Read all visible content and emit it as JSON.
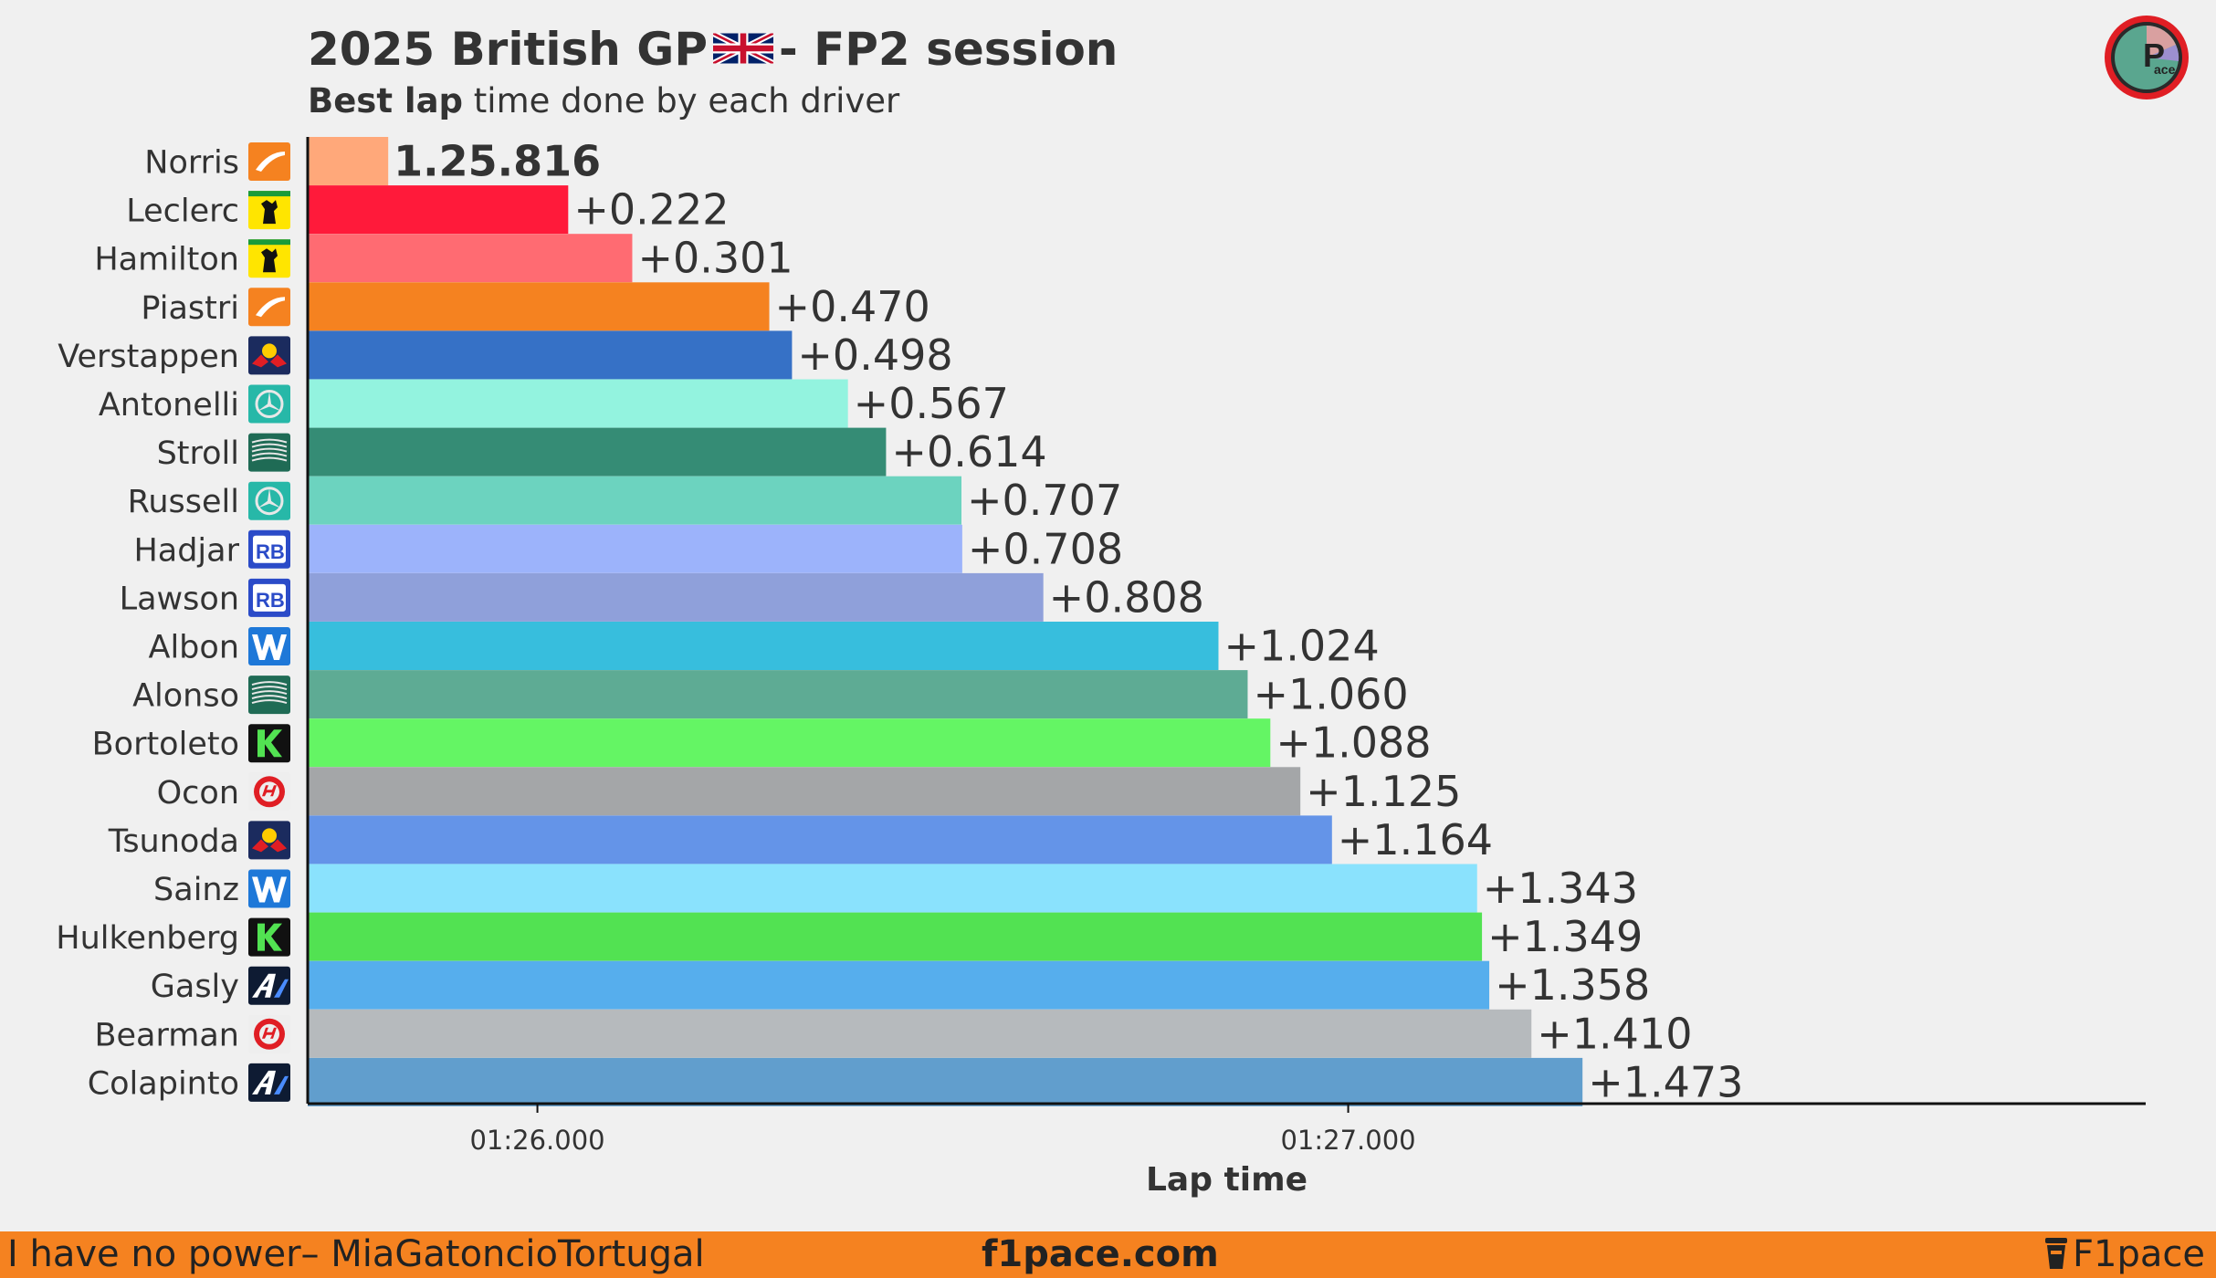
{
  "header": {
    "title_left": "2025 British GP",
    "title_right": "- FP2 session",
    "flag_icon": "uk-flag-icon",
    "subtitle_bold": "Best lap",
    "subtitle_rest": " time done by each driver"
  },
  "footer": {
    "left": "I have no power– MiaGatoncioTortugal",
    "center": "f1pace.com",
    "right": "F1pace"
  },
  "chart_data": {
    "type": "bar",
    "orientation": "horizontal",
    "xlabel": "Lap time",
    "xlim": [
      85.7167,
      87.9836
    ],
    "xticks": [
      {
        "value": 86.0,
        "label": "01:26.000"
      },
      {
        "value": 87.0,
        "label": "01:27.000"
      }
    ],
    "grid": false,
    "bars": [
      {
        "driver": "Norris",
        "team": "mclaren",
        "lap_time": 85.816,
        "label": "1.25.816",
        "color": "#ffa87a"
      },
      {
        "driver": "Leclerc",
        "team": "ferrari",
        "lap_time": 86.038,
        "label": "+0.222",
        "color": "#ff1a3a"
      },
      {
        "driver": "Hamilton",
        "team": "ferrari",
        "lap_time": 86.117,
        "label": "+0.301",
        "color": "#ff6b72"
      },
      {
        "driver": "Piastri",
        "team": "mclaren",
        "lap_time": 86.286,
        "label": "+0.470",
        "color": "#f58220"
      },
      {
        "driver": "Verstappen",
        "team": "redbull",
        "lap_time": 86.314,
        "label": "+0.498",
        "color": "#3671c6"
      },
      {
        "driver": "Antonelli",
        "team": "mercedes",
        "lap_time": 86.383,
        "label": "+0.567",
        "color": "#93f3df"
      },
      {
        "driver": "Stroll",
        "team": "astonmartin",
        "lap_time": 86.43,
        "label": "+0.614",
        "color": "#358c75"
      },
      {
        "driver": "Russell",
        "team": "mercedes",
        "lap_time": 86.523,
        "label": "+0.707",
        "color": "#6cd3bf"
      },
      {
        "driver": "Hadjar",
        "team": "racingbulls",
        "lap_time": 86.524,
        "label": "+0.708",
        "color": "#9cb3fb"
      },
      {
        "driver": "Lawson",
        "team": "racingbulls",
        "lap_time": 86.624,
        "label": "+0.808",
        "color": "#8fa0da"
      },
      {
        "driver": "Albon",
        "team": "williams",
        "lap_time": 86.84,
        "label": "+1.024",
        "color": "#37bedd"
      },
      {
        "driver": "Alonso",
        "team": "astonmartin",
        "lap_time": 86.876,
        "label": "+1.060",
        "color": "#5eab94"
      },
      {
        "driver": "Bortoleto",
        "team": "sauber",
        "lap_time": 86.904,
        "label": "+1.088",
        "color": "#64f564"
      },
      {
        "driver": "Ocon",
        "team": "haas",
        "lap_time": 86.941,
        "label": "+1.125",
        "color": "#a4a6a8"
      },
      {
        "driver": "Tsunoda",
        "team": "redbull",
        "lap_time": 86.98,
        "label": "+1.164",
        "color": "#6494e8"
      },
      {
        "driver": "Sainz",
        "team": "williams",
        "lap_time": 87.159,
        "label": "+1.343",
        "color": "#8ae2fd"
      },
      {
        "driver": "Hulkenberg",
        "team": "sauber",
        "lap_time": 87.165,
        "label": "+1.349",
        "color": "#52e252"
      },
      {
        "driver": "Gasly",
        "team": "alpine",
        "lap_time": 87.174,
        "label": "+1.358",
        "color": "#56aeed"
      },
      {
        "driver": "Bearman",
        "team": "haas",
        "lap_time": 87.226,
        "label": "+1.410",
        "color": "#b6babd"
      },
      {
        "driver": "Colapinto",
        "team": "alpine",
        "lap_time": 87.289,
        "label": "+1.473",
        "color": "#619ecd"
      }
    ]
  }
}
